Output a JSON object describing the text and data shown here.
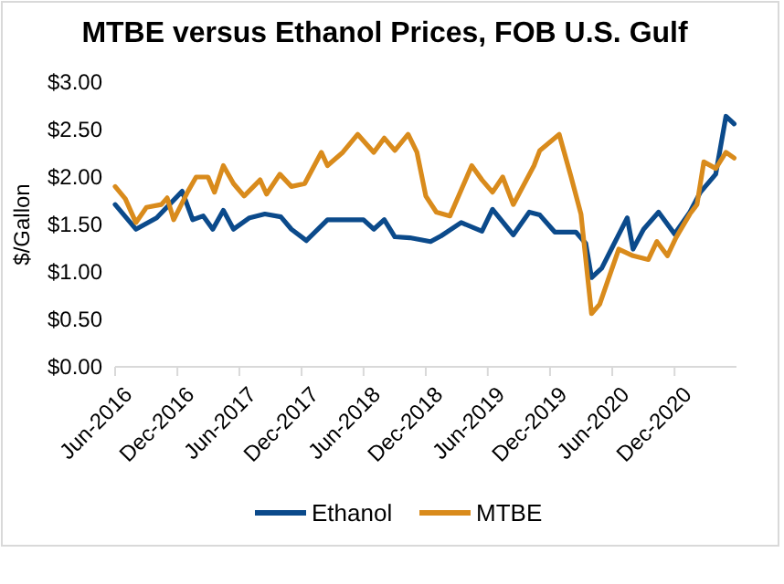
{
  "chart_data": {
    "type": "line",
    "title": "MTBE versus Ethanol Prices, FOB U.S. Gulf",
    "ylabel": "$/Gallon",
    "xlim": [
      "2016-06",
      "2021-06"
    ],
    "xticks": [
      {
        "value": "2016-06",
        "label": "Jun-2016"
      },
      {
        "value": "2016-12",
        "label": "Dec-2016"
      },
      {
        "value": "2017-06",
        "label": "Jun-2017"
      },
      {
        "value": "2017-12",
        "label": "Dec-2017"
      },
      {
        "value": "2018-06",
        "label": "Jun-2018"
      },
      {
        "value": "2018-12",
        "label": "Dec-2018"
      },
      {
        "value": "2019-06",
        "label": "Jun-2019"
      },
      {
        "value": "2019-12",
        "label": "Dec-2019"
      },
      {
        "value": "2020-06",
        "label": "Jun-2020"
      },
      {
        "value": "2020-12",
        "label": "Dec-2020"
      }
    ],
    "ylim": [
      0,
      3
    ],
    "yticks": [
      {
        "value": 0,
        "label": "$0.00"
      },
      {
        "value": 0.5,
        "label": "$0.50"
      },
      {
        "value": 1,
        "label": "$1.00"
      },
      {
        "value": 1.5,
        "label": "$1.50"
      },
      {
        "value": 2,
        "label": "$2.00"
      },
      {
        "value": 2.5,
        "label": "$2.50"
      },
      {
        "value": 3,
        "label": "$3.00"
      }
    ],
    "grid": false,
    "legend": "bottom",
    "marker": "none",
    "line_style": "solid",
    "series": [
      {
        "name": "Ethanol",
        "color": "#0b4a8b",
        "x": [
          "2016-06-01",
          "2016-08-01",
          "2016-10-01",
          "2016-12-15",
          "2017-01-15",
          "2017-02-15",
          "2017-03-15",
          "2017-04-15",
          "2017-05-15",
          "2017-07-01",
          "2017-08-15",
          "2017-10-01",
          "2017-11-01",
          "2017-12-15",
          "2018-02-15",
          "2018-04-15",
          "2018-06-01",
          "2018-07-01",
          "2018-08-01",
          "2018-09-01",
          "2018-10-15",
          "2018-12-15",
          "2019-01-15",
          "2019-03-15",
          "2019-05-15",
          "2019-06-15",
          "2019-08-15",
          "2019-10-01",
          "2019-11-01",
          "2019-12-15",
          "2020-02-15",
          "2020-03-15",
          "2020-04-01",
          "2020-05-01",
          "2020-06-01",
          "2020-07-15",
          "2020-08-01",
          "2020-09-01",
          "2020-10-15",
          "2020-12-01",
          "2021-01-15",
          "2021-02-15",
          "2021-04-01",
          "2021-05-01",
          "2021-05-25"
        ],
        "values": [
          1.71,
          1.45,
          1.57,
          1.85,
          1.55,
          1.59,
          1.45,
          1.65,
          1.45,
          1.57,
          1.61,
          1.58,
          1.45,
          1.33,
          1.55,
          1.55,
          1.55,
          1.45,
          1.55,
          1.37,
          1.36,
          1.32,
          1.38,
          1.52,
          1.43,
          1.66,
          1.39,
          1.63,
          1.6,
          1.42,
          1.42,
          1.3,
          0.94,
          1.04,
          1.26,
          1.57,
          1.24,
          1.45,
          1.63,
          1.4,
          1.63,
          1.84,
          2.03,
          2.64,
          2.56
        ]
      },
      {
        "name": "MTBE",
        "color": "#d98b1c",
        "x": [
          "2016-06-01",
          "2016-07-01",
          "2016-08-01",
          "2016-09-01",
          "2016-10-15",
          "2016-11-01",
          "2016-11-20",
          "2017-01-01",
          "2017-01-25",
          "2017-03-01",
          "2017-03-20",
          "2017-04-15",
          "2017-05-15",
          "2017-06-15",
          "2017-08-01",
          "2017-08-20",
          "2017-09-28",
          "2017-11-01",
          "2017-12-10",
          "2018-01-28",
          "2018-02-15",
          "2018-04-01",
          "2018-05-15",
          "2018-07-01",
          "2018-08-01",
          "2018-09-01",
          "2018-10-10",
          "2018-11-05",
          "2018-12-01",
          "2019-01-01",
          "2019-02-10",
          "2019-04-15",
          "2019-05-15",
          "2019-06-15",
          "2019-07-15",
          "2019-08-15",
          "2019-10-15",
          "2019-11-01",
          "2019-12-28",
          "2020-02-01",
          "2020-03-01",
          "2020-04-01",
          "2020-04-25",
          "2020-05-20",
          "2020-06-20",
          "2020-08-01",
          "2020-09-15",
          "2020-10-10",
          "2020-11-10",
          "2020-12-05",
          "2021-01-15",
          "2021-02-05",
          "2021-02-25",
          "2021-04-01",
          "2021-05-01",
          "2021-05-25"
        ],
        "values": [
          1.9,
          1.77,
          1.52,
          1.68,
          1.71,
          1.78,
          1.55,
          1.85,
          2.0,
          2.0,
          1.84,
          2.12,
          1.93,
          1.8,
          1.97,
          1.82,
          2.03,
          1.9,
          1.93,
          2.26,
          2.12,
          2.26,
          2.45,
          2.26,
          2.41,
          2.28,
          2.45,
          2.26,
          1.8,
          1.63,
          1.59,
          2.12,
          1.97,
          1.84,
          2.0,
          1.71,
          2.12,
          2.28,
          2.45,
          2.0,
          1.61,
          0.56,
          0.66,
          0.92,
          1.24,
          1.17,
          1.13,
          1.32,
          1.17,
          1.36,
          1.61,
          1.71,
          2.16,
          2.09,
          2.26,
          2.2
        ]
      }
    ]
  }
}
